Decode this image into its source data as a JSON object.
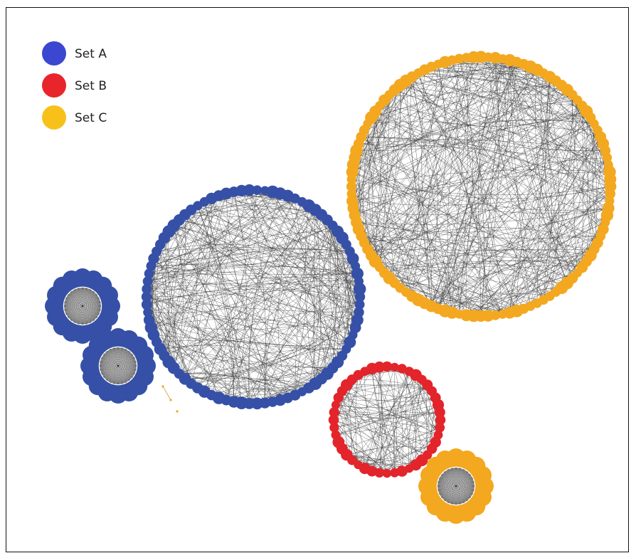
{
  "legend": {
    "items": [
      {
        "label": "Set A",
        "color": "#3b47d1"
      },
      {
        "label": "Set B",
        "color": "#e8252b"
      },
      {
        "label": "Set C",
        "color": "#f7c11a"
      }
    ]
  },
  "node_colors": {
    "set_a": "#3550a6",
    "set_b": "#e3242b",
    "set_c": "#f3a81f",
    "edge": "#333333"
  },
  "clusters": [
    {
      "id": "set-c-large-ring",
      "set": "set_c",
      "nodes": 112,
      "type": "ring"
    },
    {
      "id": "set-a-large-ring",
      "set": "set_a",
      "nodes": 86,
      "type": "ring"
    },
    {
      "id": "set-b-ring",
      "set": "set_b",
      "nodes": 44,
      "type": "ring"
    },
    {
      "id": "set-a-flower-1",
      "set": "set_a",
      "nodes": 16,
      "type": "flower"
    },
    {
      "id": "set-a-flower-2",
      "set": "set_a",
      "nodes": 16,
      "type": "flower"
    },
    {
      "id": "set-c-flower",
      "set": "set_c",
      "nodes": 16,
      "type": "flower"
    },
    {
      "id": "set-c-small-link",
      "set": "set_c",
      "nodes": 3,
      "type": "chain"
    }
  ]
}
